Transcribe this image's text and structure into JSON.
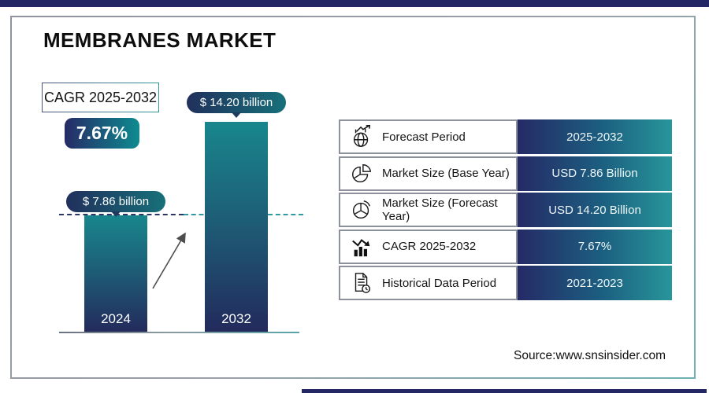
{
  "page": {
    "source_label": "Source:www.snsinsider.com"
  },
  "chart_data": {
    "type": "bar",
    "title": "MEMBRANES MARKET",
    "categories": [
      "2024",
      "2032"
    ],
    "values": [
      7.86,
      14.2
    ],
    "unit": "USD Billion",
    "bar_value_labels": [
      "$ 7.86 billion",
      "$ 14.20 billion"
    ],
    "xlabel": "",
    "ylabel": "",
    "legend": "none",
    "annotations": [
      "dashed reference line at 7.86 level",
      "diagonal growth arrow between bars"
    ],
    "colors": {
      "bar_gradient_top": "#18868c",
      "bar_gradient_bottom": "#232a5c",
      "navy": "#232763",
      "teal": "#0e8b90"
    }
  },
  "cagr": {
    "label": "CAGR 2025-2032",
    "value": "7.67%"
  },
  "table": {
    "rows": [
      {
        "icon": "globe-growth-icon",
        "label": "Forecast Period",
        "value": "2025-2032"
      },
      {
        "icon": "pie-chart-icon",
        "label": "Market Size (Base Year)",
        "value": "USD 7.86 Billion"
      },
      {
        "icon": "pie-chart-icon",
        "label": "Market Size (Forecast Year)",
        "value": "USD 14.20 Billion"
      },
      {
        "icon": "bar-chart-growth-icon",
        "label": "CAGR 2025-2032",
        "value": "7.67%"
      },
      {
        "icon": "document-clock-icon",
        "label": "Historical Data Period",
        "value": "2021-2023"
      }
    ]
  }
}
